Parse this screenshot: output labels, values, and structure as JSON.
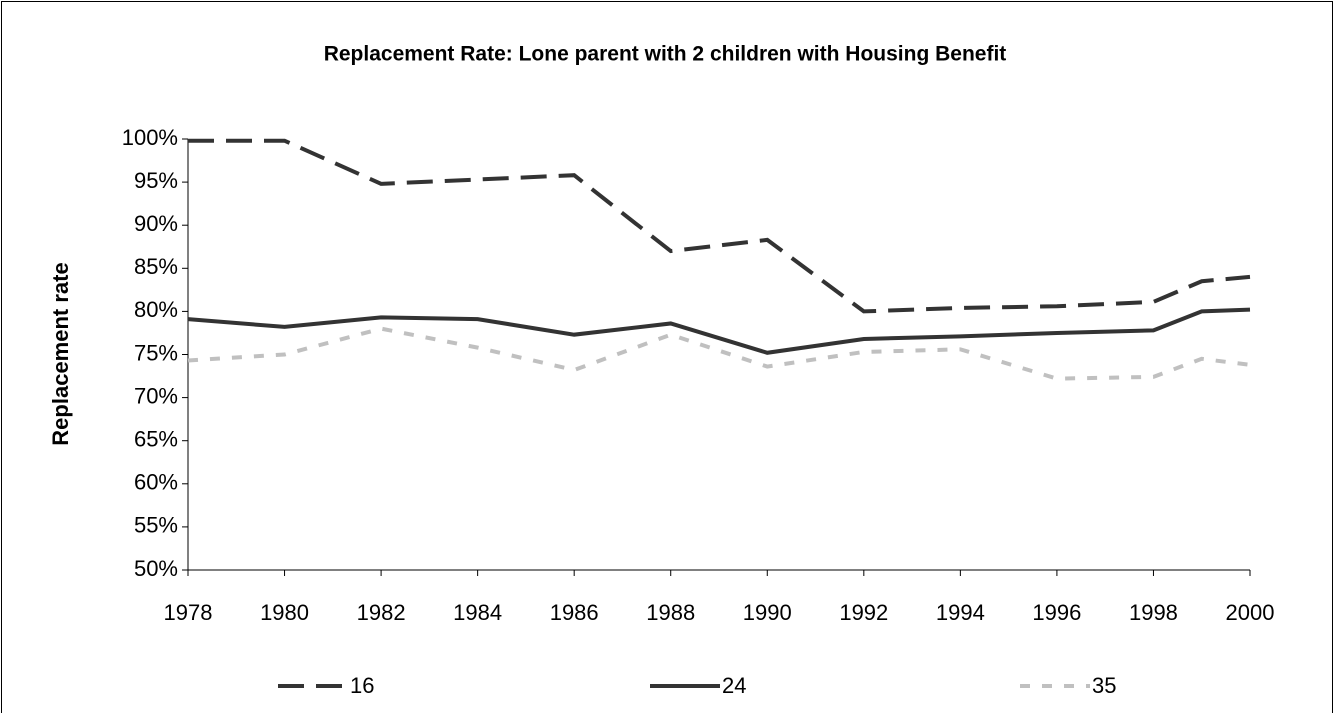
{
  "chart_data": {
    "type": "line",
    "title": "Replacement Rate: Lone parent with 2 children with Housing Benefit",
    "y_label": "Replacement rate",
    "x": [
      1978,
      1980,
      1982,
      1984,
      1986,
      1988,
      1990,
      1992,
      1994,
      1996,
      1998,
      1999,
      2000
    ],
    "xlim": [
      1978,
      2000
    ],
    "xticks": [
      1978,
      1980,
      1982,
      1984,
      1986,
      1988,
      1990,
      1992,
      1994,
      1996,
      1998,
      2000
    ],
    "ylim": [
      50,
      100
    ],
    "yticks": [
      {
        "value": 50,
        "label": "50%"
      },
      {
        "value": 55,
        "label": "55%"
      },
      {
        "value": 60,
        "label": "60%"
      },
      {
        "value": 65,
        "label": "65%"
      },
      {
        "value": 70,
        "label": "70%"
      },
      {
        "value": 75,
        "label": "75%"
      },
      {
        "value": 80,
        "label": "80%"
      },
      {
        "value": 85,
        "label": "85%"
      },
      {
        "value": 90,
        "label": "90%"
      },
      {
        "value": 95,
        "label": "95%"
      },
      {
        "value": 100,
        "label": "100%"
      }
    ],
    "grid": false,
    "legend": "bottom",
    "series": [
      {
        "name": "16",
        "color": "#333333",
        "values": [
          99.8,
          99.8,
          94.8,
          95.3,
          95.8,
          87.0,
          88.3,
          80.0,
          80.4,
          80.6,
          81.1,
          83.5,
          84.0
        ]
      },
      {
        "name": "24",
        "color": "#333333",
        "values": [
          79.1,
          78.2,
          79.3,
          79.1,
          77.3,
          78.6,
          75.2,
          76.8,
          77.1,
          77.5,
          77.8,
          80.0,
          80.2
        ]
      },
      {
        "name": "35",
        "color": "#c0c0c0",
        "values": [
          74.3,
          75.0,
          78.0,
          75.8,
          73.2,
          77.3,
          73.6,
          75.3,
          75.6,
          72.2,
          72.4,
          74.5,
          73.8
        ]
      }
    ]
  }
}
